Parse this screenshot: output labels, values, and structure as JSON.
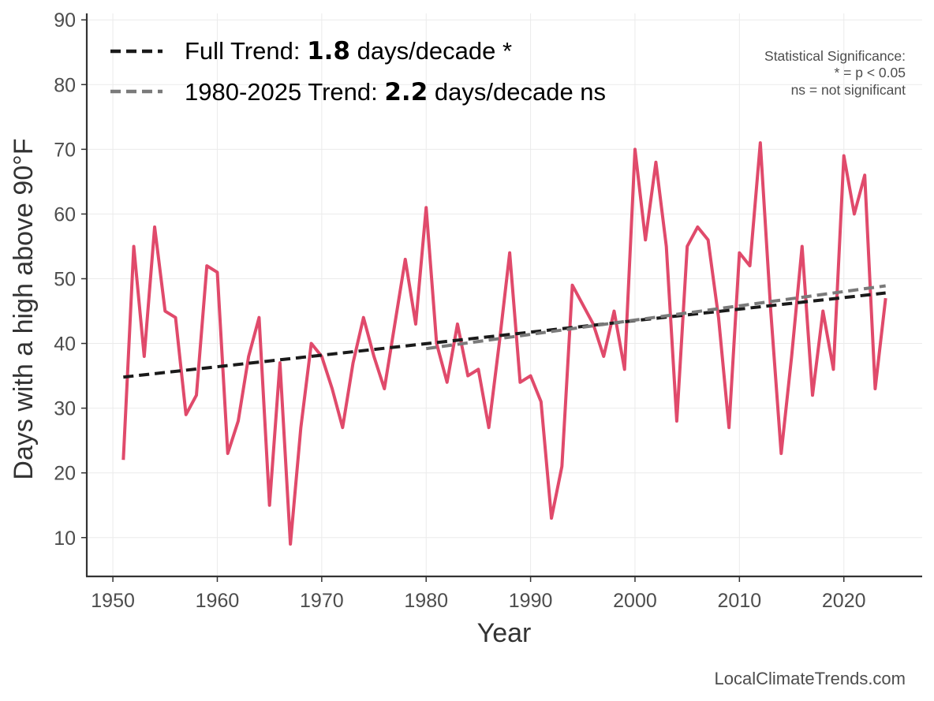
{
  "chart_data": {
    "type": "line",
    "xlabel": "Year",
    "ylabel": "Days with a high above 90°F",
    "xlim": [
      1947.5,
      2027.5
    ],
    "ylim": [
      4.0,
      91.0
    ],
    "x_ticks": [
      1950,
      1960,
      1970,
      1980,
      1990,
      2000,
      2010,
      2020
    ],
    "y_ticks": [
      10,
      20,
      30,
      40,
      50,
      60,
      70,
      80,
      90
    ],
    "series": [
      {
        "name": "Days with a high above 90°F",
        "color": "#e04a6b",
        "x": [
          1951,
          1952,
          1953,
          1954,
          1955,
          1956,
          1957,
          1958,
          1959,
          1960,
          1961,
          1962,
          1963,
          1964,
          1965,
          1966,
          1967,
          1968,
          1969,
          1970,
          1971,
          1972,
          1973,
          1974,
          1975,
          1976,
          1977,
          1978,
          1979,
          1980,
          1981,
          1982,
          1983,
          1984,
          1985,
          1986,
          1987,
          1988,
          1989,
          1990,
          1991,
          1992,
          1993,
          1994,
          1995,
          1996,
          1997,
          1998,
          1999,
          2000,
          2001,
          2002,
          2003,
          2004,
          2005,
          2006,
          2007,
          2008,
          2009,
          2010,
          2011,
          2012,
          2013,
          2014,
          2015,
          2016,
          2017,
          2018,
          2019,
          2020,
          2021,
          2022,
          2023,
          2024
        ],
        "values": [
          22,
          55,
          38,
          58,
          45,
          44,
          29,
          32,
          52,
          51,
          23,
          28,
          38,
          44,
          15,
          37,
          9,
          27,
          40,
          38,
          33,
          27,
          37,
          44,
          38,
          33,
          43,
          53,
          43,
          61,
          40,
          34,
          43,
          35,
          36,
          27,
          40,
          54,
          34,
          35,
          31,
          13,
          21,
          49,
          46,
          43,
          38,
          45,
          36,
          70,
          56,
          68,
          55,
          28,
          55,
          58,
          56,
          44,
          27,
          54,
          52,
          71,
          45,
          23,
          38,
          55,
          32,
          45,
          36,
          69,
          60,
          66,
          33,
          47
        ]
      }
    ],
    "trends": [
      {
        "name": "Full Trend",
        "x": [
          1951,
          2024
        ],
        "y": [
          34.8,
          47.8
        ],
        "color": "#1a1a1a",
        "style": "dashed",
        "label_prefix": "Full Trend: ",
        "rate": "1.8",
        "label_suffix": " days/decade *"
      },
      {
        "name": "1980-2025 Trend",
        "x": [
          1980,
          2024
        ],
        "y": [
          39.2,
          48.9
        ],
        "color": "#7a7a7a",
        "style": "dashed",
        "label_prefix": "1980-2025 Trend: ",
        "rate": "2.2",
        "label_suffix": " days/decade ns"
      }
    ],
    "legend_position": "top-left",
    "significance_note": {
      "title": "Statistical Significance:",
      "line1": "* = p < 0.05",
      "line2": "ns = not significant"
    },
    "grid": true
  },
  "credit": "LocalClimateTrends.com"
}
